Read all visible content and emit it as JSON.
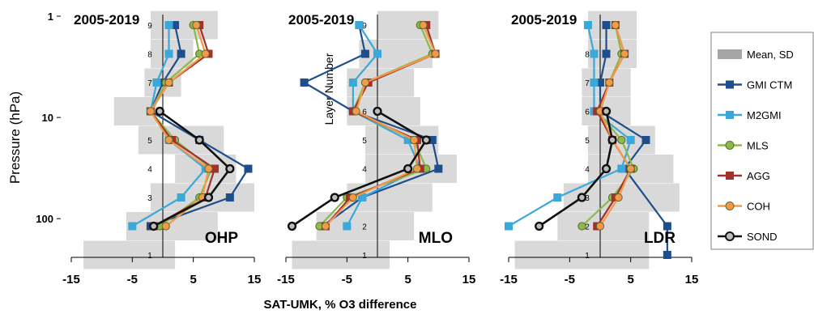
{
  "chart_data": {
    "type": "line",
    "xlabel": "SAT-UMK, % O3 difference",
    "ylabel": "Pressure (hPa)",
    "inner_ylabel": "Layer Number",
    "y_tick_labels": [
      "1",
      "10",
      "100"
    ],
    "x_ticks": [
      -15,
      -5,
      5,
      15
    ],
    "x_tick_labels": [
      "-15",
      "-5",
      "5",
      "15"
    ],
    "xlim": [
      -15,
      15
    ],
    "ylim_hpa": [
      1,
      250
    ],
    "y_scale": "log",
    "layers": [
      1,
      2,
      3,
      4,
      5,
      6,
      7,
      8,
      9
    ],
    "layer_labels": [
      "1",
      "2",
      "3",
      "4",
      "5",
      "6",
      "7",
      "8",
      "9"
    ],
    "legend": {
      "placement": "right",
      "entries": [
        {
          "key": "mean",
          "label": "Mean, SD",
          "color": "#a6a6a6",
          "marker": "band"
        },
        {
          "key": "gmi",
          "label": "GMI CTM",
          "color": "#1f4e8c",
          "marker": "square"
        },
        {
          "key": "m2gmi",
          "label": "M2GMI",
          "color": "#3aa8d8",
          "marker": "square"
        },
        {
          "key": "mls",
          "label": "MLS",
          "color": "#8db84a",
          "marker": "circle"
        },
        {
          "key": "agg",
          "label": "AGG",
          "color": "#a0312d",
          "marker": "square"
        },
        {
          "key": "coh",
          "label": "COH",
          "color": "#f2994a",
          "marker": "circle"
        },
        {
          "key": "sond",
          "label": "SOND",
          "color": "#111111",
          "marker": "circle"
        }
      ]
    },
    "panels": [
      {
        "period": "2005-2019",
        "site": "OHP",
        "sd_band": [
          [
            -13,
            2
          ],
          [
            -6,
            9
          ],
          [
            -2,
            15
          ],
          [
            2,
            12
          ],
          [
            -4,
            10
          ],
          [
            -8,
            -1
          ],
          [
            -3,
            3
          ],
          [
            -2,
            5
          ],
          [
            -2,
            9
          ]
        ],
        "series": {
          "gmi": [
            null,
            -2,
            11,
            14,
            6,
            -2,
            0,
            3,
            2
          ],
          "m2gmi": [
            null,
            -5,
            3,
            7,
            1,
            -2,
            -1,
            1,
            1
          ],
          "mls": [
            null,
            -0.5,
            6,
            8,
            2,
            -2,
            0.5,
            6,
            5
          ],
          "agg": [
            null,
            -1.5,
            7,
            8.5,
            1.5,
            -2,
            1,
            7.5,
            6
          ],
          "coh": [
            null,
            0.5,
            6.5,
            7.5,
            1,
            -2,
            1,
            7,
            5.5
          ],
          "sond": [
            null,
            -1.5,
            7.5,
            11,
            6,
            -0.5,
            null,
            null,
            null
          ]
        }
      },
      {
        "period": "2005-2019",
        "site": "MLO",
        "sd_band": [
          [
            -14,
            2
          ],
          [
            -10,
            6
          ],
          [
            -5,
            9
          ],
          [
            -2,
            13
          ],
          [
            -2,
            10
          ],
          [
            -5,
            7
          ],
          [
            -5,
            6
          ],
          [
            -3,
            9
          ],
          [
            0,
            10
          ]
        ],
        "series": {
          "gmi": [
            null,
            -9,
            -2.5,
            10,
            9,
            -4,
            -12,
            -2,
            -3
          ],
          "m2gmi": [
            null,
            -5,
            -2.5,
            7,
            5,
            -4,
            -4,
            0,
            -3
          ],
          "mls": [
            null,
            -9.5,
            -5,
            8,
            6,
            -4,
            -2,
            9,
            7
          ],
          "agg": [
            null,
            -8.5,
            -4.5,
            7,
            6.5,
            -4,
            -1.5,
            9.5,
            8
          ],
          "coh": [
            null,
            -8.5,
            -4,
            6.5,
            6,
            -3.5,
            -2,
            9.5,
            7.5
          ],
          "sond": [
            null,
            -14,
            -7,
            5,
            8,
            0,
            null,
            null,
            null
          ]
        }
      },
      {
        "period": "2005-2019",
        "site": "LDR",
        "sd_band": [
          [
            -14,
            8
          ],
          [
            -7,
            8
          ],
          [
            -6,
            13
          ],
          [
            -2,
            12
          ],
          [
            -2,
            9
          ],
          [
            -3,
            5
          ],
          [
            -3,
            5
          ],
          [
            -2,
            6
          ],
          [
            -2,
            6
          ]
        ],
        "series": {
          "gmi": [
            11,
            11,
            null,
            4,
            7.5,
            0,
            0,
            1,
            1
          ],
          "m2gmi": [
            null,
            -15,
            -7,
            3.5,
            5,
            -1,
            -1,
            -1,
            -2
          ],
          "mls": [
            null,
            -3,
            2,
            5.5,
            3.5,
            -0.5,
            1.5,
            3.5,
            2.5
          ],
          "agg": [
            null,
            -0.5,
            2.5,
            5,
            2,
            -0.5,
            1.5,
            4,
            2.5
          ],
          "coh": [
            null,
            0,
            3,
            5,
            2,
            0,
            1.5,
            4,
            2.5
          ],
          "sond": [
            null,
            -10,
            -3,
            1,
            2,
            1,
            null,
            null,
            null
          ]
        }
      }
    ]
  }
}
